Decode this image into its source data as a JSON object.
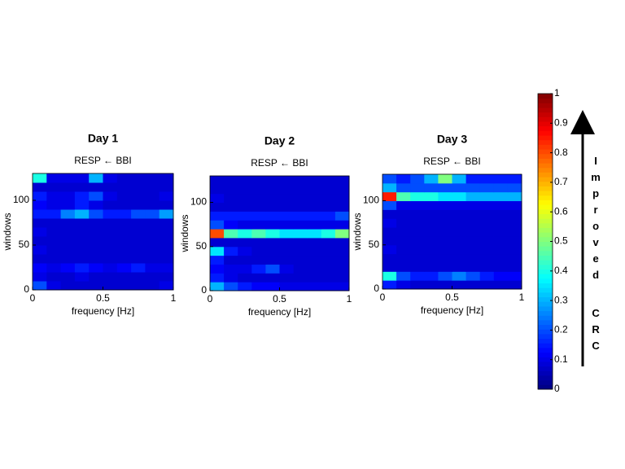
{
  "chart_data": [
    {
      "type": "heatmap",
      "title": "Day 1",
      "subtitle": "RESP ← BBI",
      "xlabel": "frequency [Hz]",
      "ylabel": "windows",
      "xlim": [
        0,
        1
      ],
      "ylim": [
        0,
        130
      ],
      "xticks": [
        0,
        0.5,
        1
      ],
      "yticks": [
        0,
        50,
        100
      ],
      "values": [
        [
          0.2,
          0.1,
          0.08,
          0.08,
          0.08,
          0.08,
          0.08,
          0.08,
          0.08,
          0.1
        ],
        [
          0.1,
          0.08,
          0.08,
          0.1,
          0.08,
          0.08,
          0.08,
          0.08,
          0.08,
          0.08
        ],
        [
          0.12,
          0.1,
          0.12,
          0.15,
          0.12,
          0.1,
          0.12,
          0.15,
          0.1,
          0.1
        ],
        [
          0.08,
          0.08,
          0.08,
          0.08,
          0.08,
          0.08,
          0.08,
          0.08,
          0.08,
          0.08
        ],
        [
          0.1,
          0.08,
          0.08,
          0.08,
          0.08,
          0.08,
          0.08,
          0.08,
          0.08,
          0.08
        ],
        [
          0.08,
          0.08,
          0.08,
          0.08,
          0.08,
          0.08,
          0.08,
          0.08,
          0.08,
          0.08
        ],
        [
          0.1,
          0.08,
          0.08,
          0.08,
          0.08,
          0.08,
          0.08,
          0.08,
          0.08,
          0.08
        ],
        [
          0.08,
          0.08,
          0.08,
          0.08,
          0.08,
          0.08,
          0.08,
          0.08,
          0.08,
          0.08
        ],
        [
          0.15,
          0.15,
          0.25,
          0.3,
          0.2,
          0.15,
          0.15,
          0.2,
          0.2,
          0.28
        ],
        [
          0.12,
          0.1,
          0.1,
          0.15,
          0.1,
          0.08,
          0.08,
          0.08,
          0.08,
          0.08
        ],
        [
          0.15,
          0.1,
          0.1,
          0.15,
          0.2,
          0.1,
          0.08,
          0.08,
          0.08,
          0.1
        ],
        [
          0.08,
          0.08,
          0.08,
          0.08,
          0.08,
          0.08,
          0.08,
          0.08,
          0.08,
          0.08
        ],
        [
          0.4,
          0.1,
          0.1,
          0.1,
          0.3,
          0.1,
          0.08,
          0.08,
          0.08,
          0.08
        ]
      ]
    },
    {
      "type": "heatmap",
      "title": "Day 2",
      "subtitle": "RESP ← BBI",
      "xlabel": "frequency [Hz]",
      "ylabel": "windows",
      "xlim": [
        0,
        1
      ],
      "ylim": [
        0,
        130
      ],
      "xticks": [
        0,
        0.5,
        1
      ],
      "yticks": [
        0,
        50,
        100
      ],
      "values": [
        [
          0.3,
          0.2,
          0.15,
          0.12,
          0.12,
          0.1,
          0.1,
          0.1,
          0.1,
          0.1
        ],
        [
          0.15,
          0.1,
          0.08,
          0.08,
          0.08,
          0.08,
          0.08,
          0.08,
          0.08,
          0.08
        ],
        [
          0.12,
          0.1,
          0.1,
          0.15,
          0.2,
          0.1,
          0.08,
          0.08,
          0.08,
          0.08
        ],
        [
          0.15,
          0.08,
          0.08,
          0.08,
          0.08,
          0.08,
          0.08,
          0.08,
          0.08,
          0.08
        ],
        [
          0.35,
          0.15,
          0.1,
          0.08,
          0.08,
          0.08,
          0.08,
          0.08,
          0.08,
          0.08
        ],
        [
          0.08,
          0.08,
          0.08,
          0.08,
          0.08,
          0.08,
          0.08,
          0.08,
          0.08,
          0.08
        ],
        [
          0.8,
          0.45,
          0.4,
          0.45,
          0.4,
          0.35,
          0.35,
          0.35,
          0.4,
          0.5
        ],
        [
          0.2,
          0.12,
          0.1,
          0.1,
          0.1,
          0.1,
          0.1,
          0.1,
          0.1,
          0.1
        ],
        [
          0.15,
          0.15,
          0.15,
          0.15,
          0.15,
          0.15,
          0.15,
          0.15,
          0.15,
          0.2
        ],
        [
          0.08,
          0.08,
          0.08,
          0.08,
          0.08,
          0.08,
          0.08,
          0.08,
          0.08,
          0.08
        ],
        [
          0.1,
          0.08,
          0.08,
          0.08,
          0.08,
          0.08,
          0.08,
          0.08,
          0.08,
          0.08
        ],
        [
          0.08,
          0.08,
          0.08,
          0.08,
          0.08,
          0.08,
          0.08,
          0.08,
          0.08,
          0.08
        ],
        [
          0.08,
          0.08,
          0.08,
          0.08,
          0.08,
          0.08,
          0.08,
          0.08,
          0.08,
          0.08
        ]
      ]
    },
    {
      "type": "heatmap",
      "title": "Day 3",
      "subtitle": "RESP ← BBI",
      "xlabel": "frequency [Hz]",
      "ylabel": "windows",
      "xlim": [
        0,
        1
      ],
      "ylim": [
        0,
        130
      ],
      "xticks": [
        0,
        0.5,
        1
      ],
      "yticks": [
        0,
        50,
        100
      ],
      "values": [
        [
          0.15,
          0.1,
          0.08,
          0.08,
          0.08,
          0.08,
          0.08,
          0.08,
          0.08,
          0.08
        ],
        [
          0.4,
          0.2,
          0.15,
          0.15,
          0.2,
          0.25,
          0.2,
          0.15,
          0.12,
          0.12
        ],
        [
          0.08,
          0.08,
          0.08,
          0.08,
          0.08,
          0.08,
          0.08,
          0.08,
          0.08,
          0.08
        ],
        [
          0.08,
          0.08,
          0.08,
          0.08,
          0.08,
          0.08,
          0.08,
          0.08,
          0.08,
          0.08
        ],
        [
          0.1,
          0.08,
          0.08,
          0.08,
          0.08,
          0.08,
          0.08,
          0.08,
          0.08,
          0.08
        ],
        [
          0.08,
          0.08,
          0.08,
          0.08,
          0.08,
          0.08,
          0.08,
          0.08,
          0.08,
          0.08
        ],
        [
          0.08,
          0.08,
          0.08,
          0.08,
          0.08,
          0.08,
          0.08,
          0.08,
          0.08,
          0.08
        ],
        [
          0.1,
          0.08,
          0.08,
          0.08,
          0.08,
          0.08,
          0.08,
          0.08,
          0.08,
          0.08
        ],
        [
          0.08,
          0.08,
          0.08,
          0.08,
          0.08,
          0.08,
          0.08,
          0.08,
          0.08,
          0.08
        ],
        [
          0.2,
          0.1,
          0.1,
          0.1,
          0.1,
          0.1,
          0.1,
          0.1,
          0.1,
          0.1
        ],
        [
          0.85,
          0.45,
          0.4,
          0.4,
          0.35,
          0.35,
          0.3,
          0.3,
          0.3,
          0.3
        ],
        [
          0.3,
          0.2,
          0.2,
          0.2,
          0.2,
          0.2,
          0.2,
          0.2,
          0.2,
          0.2
        ],
        [
          0.2,
          0.15,
          0.2,
          0.3,
          0.5,
          0.3,
          0.15,
          0.15,
          0.15,
          0.15
        ]
      ]
    }
  ],
  "colorbar": {
    "lim": [
      0,
      1
    ],
    "ticks": [
      0,
      0.1,
      0.2,
      0.3,
      0.4,
      0.5,
      0.6,
      0.7,
      0.8,
      0.9,
      1
    ]
  },
  "annotation": [
    "Improved",
    "CRC"
  ]
}
